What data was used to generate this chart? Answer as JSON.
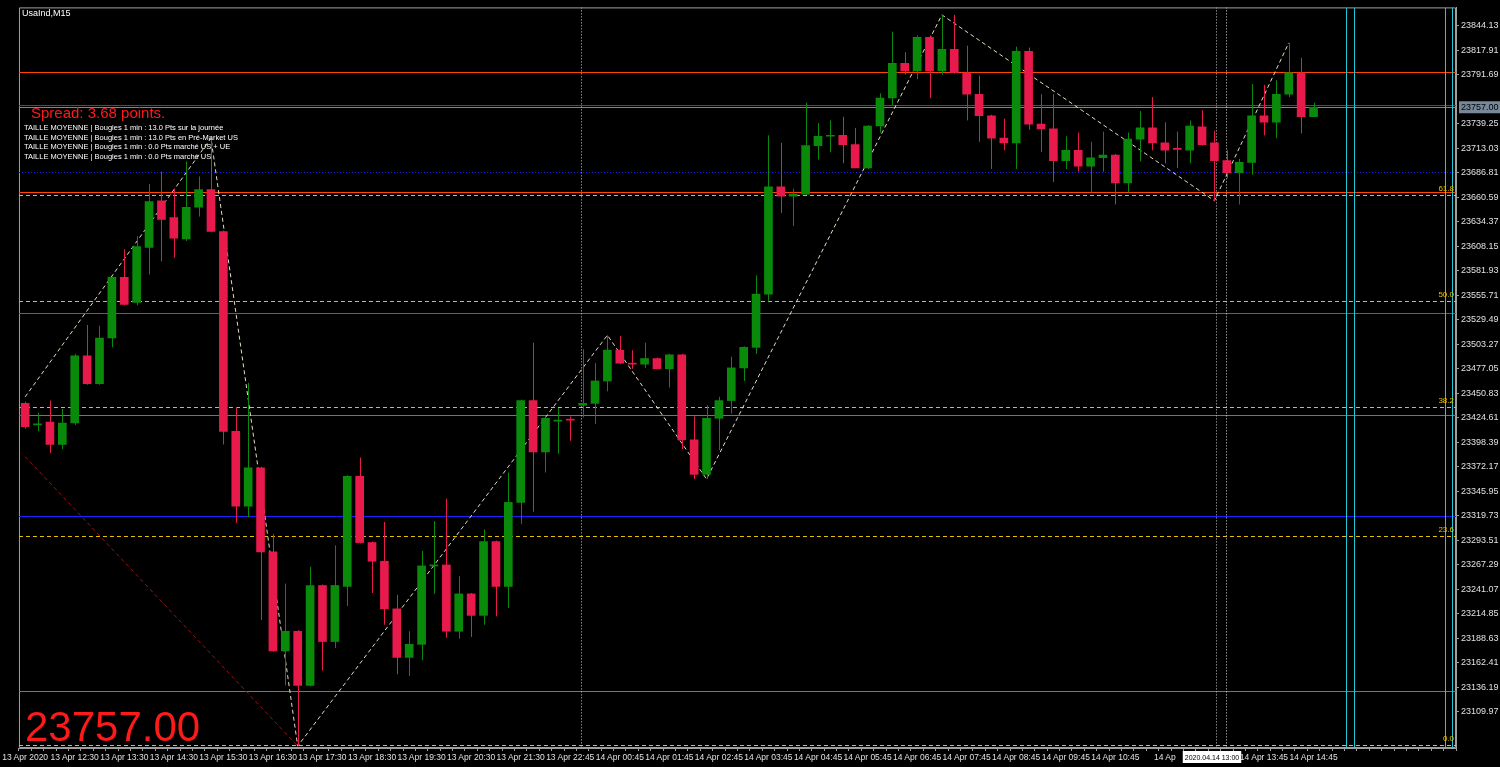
{
  "chart_data": {
    "type": "candlestick",
    "title": "UsaInd,M15",
    "categories": [
      "13 Apr 2020",
      null,
      null,
      null,
      "13 Apr 12:30",
      null,
      null,
      null,
      "13 Apr 13:30",
      null,
      null,
      null,
      "13 Apr 14:30",
      null,
      null,
      null,
      "13 Apr 15:30",
      null,
      null,
      null,
      "13 Apr 16:30",
      null,
      null,
      null,
      "13 Apr 17:30",
      null,
      null,
      null,
      "13 Apr 18:30",
      null,
      null,
      null,
      "13 Apr 19:30",
      null,
      null,
      null,
      "13 Apr 20:30",
      null,
      null,
      null,
      "13 Apr 21:30",
      null,
      null,
      null,
      "13 Apr 22:45",
      null,
      null,
      null,
      "14 Apr 00:45",
      null,
      null,
      null,
      "14 Apr 01:45",
      null,
      null,
      null,
      "14 Apr 02:45",
      null,
      null,
      null,
      "14 Apr 03:45",
      null,
      null,
      null,
      "14 Apr 04:45",
      null,
      null,
      null,
      "14 Apr 05:45",
      null,
      null,
      null,
      "14 Apr 06:45",
      null,
      null,
      null,
      "14 Apr 07:45",
      null,
      null,
      null,
      "14 Apr 08:45",
      null,
      null,
      null,
      "14 Apr 09:45",
      null,
      null,
      null,
      "14 Apr 10:45",
      null,
      null,
      null,
      "14 Ap",
      null,
      null,
      null,
      null,
      null,
      null,
      null,
      "14 Apr 13:45",
      null,
      null,
      null,
      "14 Apr 14:45",
      null,
      null,
      null,
      null,
      null,
      null,
      null,
      null,
      null,
      null,
      null
    ],
    "ohlc": [
      [
        23440,
        23442,
        23413,
        23415
      ],
      [
        23417,
        23430,
        23410,
        23418
      ],
      [
        23420,
        23443,
        23387,
        23396
      ],
      [
        23396,
        23434,
        23391,
        23419
      ],
      [
        23419,
        23493,
        23417,
        23491
      ],
      [
        23491,
        23524,
        23460,
        23461
      ],
      [
        23461,
        23523,
        23460,
        23510
      ],
      [
        23510,
        23576,
        23500,
        23575
      ],
      [
        23575,
        23605,
        23545,
        23546
      ],
      [
        23548,
        23619,
        23545,
        23608
      ],
      [
        23607,
        23675,
        23578,
        23656
      ],
      [
        23657,
        23688,
        23592,
        23637
      ],
      [
        23639,
        23670,
        23596,
        23617
      ],
      [
        23616,
        23699,
        23614,
        23650
      ],
      [
        23650,
        23683,
        23640,
        23669
      ],
      [
        23669,
        23724,
        23623,
        23624
      ],
      [
        23624,
        23625,
        23396,
        23410
      ],
      [
        23410,
        23436,
        23312,
        23330
      ],
      [
        23330,
        23462,
        23318,
        23371
      ],
      [
        23371,
        23372,
        23208,
        23281
      ],
      [
        23281,
        23300,
        23174,
        23175
      ],
      [
        23175,
        23247,
        23138,
        23196
      ],
      [
        23196,
        23197,
        23073,
        23138
      ],
      [
        23138,
        23265,
        23137,
        23245
      ],
      [
        23245,
        23246,
        23154,
        23185
      ],
      [
        23185,
        23288,
        23178,
        23245
      ],
      [
        23244,
        23363,
        23223,
        23362
      ],
      [
        23362,
        23382,
        23290,
        23291
      ],
      [
        23291,
        23292,
        23237,
        23271
      ],
      [
        23271,
        23313,
        23203,
        23220
      ],
      [
        23220,
        23235,
        23150,
        23168
      ],
      [
        23168,
        23196,
        23148,
        23182
      ],
      [
        23182,
        23282,
        23165,
        23266
      ],
      [
        23266,
        23314,
        23236,
        23267
      ],
      [
        23267,
        23338,
        23189,
        23196
      ],
      [
        23196,
        23255,
        23188,
        23236
      ],
      [
        23236,
        23237,
        23190,
        23213
      ],
      [
        23213,
        23305,
        23203,
        23292
      ],
      [
        23292,
        23293,
        23212,
        23244
      ],
      [
        23244,
        23366,
        23221,
        23334
      ],
      [
        23334,
        23444,
        23311,
        23443
      ],
      [
        23443,
        23505,
        23324,
        23388
      ],
      [
        23388,
        23425,
        23366,
        23424
      ],
      [
        23421,
        23435,
        23386,
        23422
      ],
      [
        23423,
        23426,
        23400,
        23422
      ],
      [
        23438,
        23498,
        23425,
        23440
      ],
      [
        23440,
        23483,
        23418,
        23464
      ],
      [
        23464,
        23513,
        23453,
        23497
      ],
      [
        23497,
        23512,
        23482,
        23483
      ],
      [
        23483,
        23497,
        23477,
        23482
      ],
      [
        23482,
        23505,
        23478,
        23488
      ],
      [
        23488,
        23489,
        23477,
        23477
      ],
      [
        23477,
        23493,
        23457,
        23492
      ],
      [
        23492,
        23493,
        23391,
        23401
      ],
      [
        23401,
        23426,
        23359,
        23364
      ],
      [
        23364,
        23438,
        23359,
        23424
      ],
      [
        23424,
        23447,
        23390,
        23443
      ],
      [
        23443,
        23490,
        23429,
        23478
      ],
      [
        23478,
        23501,
        23464,
        23500
      ],
      [
        23500,
        23577,
        23493,
        23557
      ],
      [
        23557,
        23727,
        23549,
        23672
      ],
      [
        23672,
        23719,
        23644,
        23662
      ],
      [
        23662,
        23670,
        23630,
        23664
      ],
      [
        23664,
        23762,
        23663,
        23716
      ],
      [
        23716,
        23740,
        23701,
        23726
      ],
      [
        23726,
        23743,
        23709,
        23727
      ],
      [
        23727,
        23747,
        23697,
        23717
      ],
      [
        23717,
        23735,
        23692,
        23692
      ],
      [
        23692,
        23738,
        23691,
        23737
      ],
      [
        23737,
        23772,
        23730,
        23767
      ],
      [
        23767,
        23838,
        23759,
        23804
      ],
      [
        23804,
        23816,
        23792,
        23796
      ],
      [
        23796,
        23834,
        23787,
        23832
      ],
      [
        23832,
        23834,
        23767,
        23796
      ],
      [
        23796,
        23856,
        23792,
        23819
      ],
      [
        23819,
        23856,
        23793,
        23794
      ],
      [
        23794,
        23823,
        23743,
        23771
      ],
      [
        23771,
        23791,
        23720,
        23748
      ],
      [
        23748,
        23749,
        23691,
        23724
      ],
      [
        23724,
        23745,
        23711,
        23719
      ],
      [
        23719,
        23822,
        23691,
        23817
      ],
      [
        23817,
        23821,
        23733,
        23739
      ],
      [
        23739,
        23771,
        23709,
        23734
      ],
      [
        23734,
        23771,
        23677,
        23700
      ],
      [
        23700,
        23726,
        23691,
        23711
      ],
      [
        23711,
        23730,
        23688,
        23694
      ],
      [
        23694,
        23720,
        23666,
        23703
      ],
      [
        23703,
        23731,
        23688,
        23706
      ],
      [
        23706,
        23707,
        23653,
        23676
      ],
      [
        23676,
        23730,
        23666,
        23723
      ],
      [
        23723,
        23753,
        23699,
        23735
      ],
      [
        23735,
        23768,
        23711,
        23719
      ],
      [
        23719,
        23741,
        23697,
        23711
      ],
      [
        23713,
        23731,
        23692,
        23712
      ],
      [
        23711,
        23743,
        23697,
        23737
      ],
      [
        23736,
        23754,
        23716,
        23717
      ],
      [
        23719,
        23732,
        23657,
        23700
      ],
      [
        23700,
        23711,
        23681,
        23687
      ],
      [
        23687,
        23702,
        23653,
        23698
      ],
      [
        23698,
        23782,
        23685,
        23748
      ],
      [
        23748,
        23781,
        23727,
        23741
      ],
      [
        23741,
        23786,
        23724,
        23771
      ],
      [
        23771,
        23826,
        23768,
        23794
      ],
      [
        23794,
        23810,
        23729,
        23747
      ],
      [
        23747,
        23762,
        23747,
        23757
      ],
      null,
      null,
      null,
      null,
      null,
      null,
      null,
      null,
      null,
      null,
      null
    ],
    "colors": [
      "#e8194b",
      "#0a8a0a",
      "#e8194b",
      "#0a8a0a",
      "#0a8a0a",
      "#e8194b",
      "#0a8a0a",
      "#0a8a0a",
      "#e8194b",
      "#0a8a0a",
      "#0a8a0a",
      "#e8194b",
      "#e8194b",
      "#0a8a0a",
      "#0a8a0a",
      "#e8194b",
      "#e8194b",
      "#e8194b",
      "#0a8a0a",
      "#e8194b",
      "#e8194b",
      "#0a8a0a",
      "#e8194b",
      "#0a8a0a",
      "#e8194b",
      "#0a8a0a",
      "#0a8a0a",
      "#e8194b",
      "#e8194b",
      "#e8194b",
      "#e8194b",
      "#0a8a0a",
      "#0a8a0a",
      "#0a8a0a",
      "#e8194b",
      "#0a8a0a",
      "#e8194b",
      "#0a8a0a",
      "#e8194b",
      "#0a8a0a",
      "#0a8a0a",
      "#e8194b",
      "#0a8a0a",
      "#0a8a0a",
      "#e8194b",
      "#0a8a0a",
      "#0a8a0a",
      "#0a8a0a",
      "#e8194b",
      "#e8194b",
      "#0a8a0a",
      "#e8194b",
      "#0a8a0a",
      "#e8194b",
      "#e8194b",
      "#0a8a0a",
      "#0a8a0a",
      "#0a8a0a",
      "#0a8a0a",
      "#0a8a0a",
      "#0a8a0a",
      "#e8194b",
      "#0a8a0a",
      "#0a8a0a",
      "#0a8a0a",
      "#0a8a0a",
      "#e8194b",
      "#e8194b",
      "#0a8a0a",
      "#0a8a0a",
      "#0a8a0a",
      "#e8194b",
      "#0a8a0a",
      "#e8194b",
      "#0a8a0a",
      "#e8194b",
      "#e8194b",
      "#e8194b",
      "#e8194b",
      "#e8194b",
      "#0a8a0a",
      "#e8194b",
      "#e8194b",
      "#e8194b",
      "#0a8a0a",
      "#e8194b",
      "#0a8a0a",
      "#0a8a0a",
      "#e8194b",
      "#0a8a0a",
      "#0a8a0a",
      "#e8194b",
      "#e8194b",
      "#e8194b",
      "#0a8a0a",
      "#e8194b",
      "#e8194b",
      "#e8194b",
      "#0a8a0a",
      "#0a8a0a",
      "#e8194b",
      "#0a8a0a",
      "#0a8a0a",
      "#e8194b",
      "#0a8a0a",
      null,
      null,
      null,
      null,
      null,
      null,
      null,
      null,
      null,
      null,
      null
    ],
    "series": [
      {
        "type": "line",
        "color": "#e8dcc0",
        "line_style": "dashed",
        "values": [
          23447,
          null,
          null,
          null,
          null,
          null,
          null,
          null,
          null,
          null,
          null,
          null,
          null,
          null,
          null,
          23724,
          null,
          null,
          null,
          null,
          null,
          null,
          23073,
          null,
          null,
          null,
          null,
          null,
          null,
          null,
          null,
          null,
          null,
          null,
          null,
          null,
          null,
          null,
          null,
          null,
          null,
          null,
          null,
          null,
          null,
          null,
          null,
          23513,
          null,
          null,
          null,
          null,
          null,
          null,
          null,
          23359,
          null,
          null,
          null,
          null,
          null,
          null,
          null,
          null,
          null,
          null,
          null,
          null,
          null,
          null,
          null,
          null,
          null,
          null,
          23856,
          null,
          null,
          null,
          null,
          null,
          null,
          null,
          null,
          null,
          null,
          null,
          null,
          null,
          null,
          null,
          null,
          null,
          null,
          null,
          null,
          null,
          23657,
          null,
          null,
          null,
          null,
          null,
          23826,
          null,
          null,
          null,
          null,
          null,
          null,
          null,
          null,
          null,
          null,
          null,
          null,
          null
        ]
      },
      {
        "type": "line",
        "color": "#a01010",
        "line_style": "dashed",
        "values": [
          23383,
          null,
          null,
          null,
          null,
          null,
          null,
          null,
          null,
          null,
          null,
          null,
          null,
          null,
          null,
          null,
          null,
          null,
          null,
          null,
          null,
          null,
          23073,
          null,
          null,
          null,
          null,
          null,
          null,
          null,
          null,
          null,
          null,
          null,
          null,
          null,
          null,
          null,
          null,
          null,
          null,
          null,
          null,
          null,
          null,
          null,
          null,
          null,
          null,
          null,
          null,
          null,
          null,
          null,
          null,
          null,
          null,
          null,
          null,
          null,
          null,
          null,
          null,
          null,
          null,
          null,
          null,
          null,
          null,
          null,
          null,
          null,
          null,
          null,
          null,
          null,
          null,
          null,
          null,
          null,
          null,
          null,
          null,
          null,
          null,
          null,
          null,
          null,
          null,
          null,
          null,
          null,
          null,
          null,
          null,
          null,
          null,
          null,
          null,
          null,
          null,
          null,
          null,
          null,
          null,
          null,
          null,
          null,
          null,
          null,
          null,
          null,
          null,
          null,
          null,
          null
        ]
      }
    ],
    "ylim": [
      23071,
      23864
    ],
    "yticks": [
      23844.13,
      23817.91,
      23791.69,
      23739.25,
      23713.03,
      23686.81,
      23660.59,
      23634.37,
      23608.15,
      23581.93,
      23555.71,
      23529.49,
      23503.27,
      23477.05,
      23450.83,
      23424.61,
      23398.39,
      23372.17,
      23345.95,
      23319.73,
      23293.51,
      23267.29,
      23241.07,
      23214.85,
      23188.63,
      23162.41,
      23136.19,
      23109.97
    ],
    "ref_lines": [
      {
        "axis": "y",
        "value": 23795,
        "color": "#ff4500",
        "line_style": "solid"
      },
      {
        "axis": "y",
        "value": 23760,
        "color": "#b22222",
        "line_style": "solid"
      },
      {
        "axis": "y",
        "value": 23757.0,
        "label": "23757.00",
        "color": "#778899",
        "line_style": "solid"
      },
      {
        "axis": "y",
        "value": 23688,
        "color": "#1e1eff",
        "line_style": "dotted"
      },
      {
        "axis": "y",
        "value": 23666,
        "color": "#ff4500",
        "line_style": "solid"
      },
      {
        "axis": "y",
        "value": 23663,
        "color": "#e6c200",
        "line_style": "dashed"
      },
      {
        "axis": "y",
        "value": 23550,
        "color": "#e6c200",
        "line_style": "dashed"
      },
      {
        "axis": "y",
        "value": 23537,
        "color": "#9932cc",
        "line_style": "solid"
      },
      {
        "axis": "y",
        "value": 23436,
        "color": "#e6c200",
        "line_style": "dashed"
      },
      {
        "axis": "y",
        "value": 23428,
        "color": "#ff4500",
        "line_style": "solid"
      },
      {
        "axis": "y",
        "value": 23319,
        "color": "#1e1eff",
        "line_style": "solid"
      },
      {
        "axis": "y",
        "value": 23298,
        "color": "#e6c200",
        "line_style": "dashed"
      },
      {
        "axis": "y",
        "value": 23132,
        "color": "#ff4500",
        "line_style": "solid"
      },
      {
        "axis": "y",
        "value": 23074,
        "color": "#e6c200",
        "line_style": "dashed"
      }
    ],
    "annotations": [
      "Spread: 3.68 points.",
      "TAILLE MOYENNE | Bougies 1 min : 13.0 Pts sur la journée",
      "TAILLE MOYENNE | Bougies 1 min : 13.0 Pts en Pré-Market US",
      "TAILLE MOYENNE | Bougies 1 min : 0.0 Pts marché US + UE",
      "TAILLE MOYENNE | Bougies 1 min : 0.0 Pts marché US",
      "23757.00",
      "2020.04.14 13:00",
      {
        "text": "61.8",
        "y": 23663
      },
      {
        "text": "50.0",
        "y": 23550
      },
      {
        "text": "38.2",
        "y": 23436
      },
      {
        "text": "23.6",
        "y": 23298
      },
      {
        "text": "0.0",
        "y": 23074
      }
    ]
  }
}
